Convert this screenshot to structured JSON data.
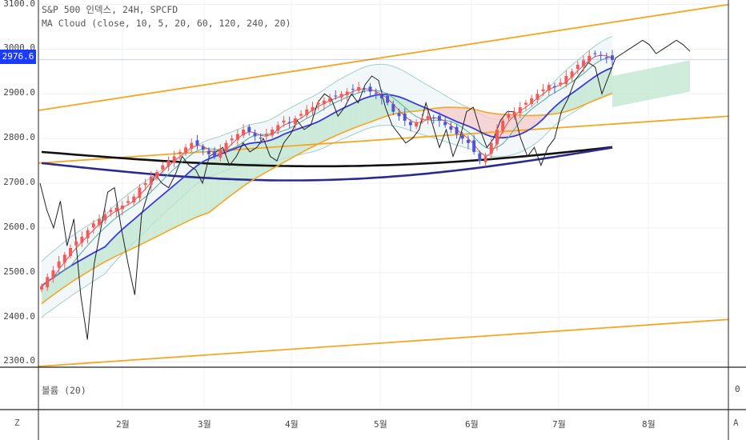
{
  "legend": {
    "line1": "S&P 500 인덱스, 24H, SPCFD",
    "line2": "MA Cloud (close, 10, 5, 20, 60, 120, 240, 20)"
  },
  "price_badge": "2976.6",
  "subpane_label": "볼륨 (20)",
  "subpane_tick": "0",
  "corner_left": "Z",
  "corner_right": "A",
  "colors": {
    "bull": "#f25a5a",
    "bear": "#4a55d8",
    "orange": "#f5a623",
    "navy": "#2b2b8f",
    "black": "#111111"
  },
  "chart_data": {
    "type": "candlestick",
    "title": "S&P 500 인덱스, 24H, SPCFD",
    "y_ticks": [
      "3100.0",
      "3000.0",
      "2900.0",
      "2800.0",
      "2700.0",
      "2600.0",
      "2500.0",
      "2400.0",
      "2300.0"
    ],
    "x_ticks": [
      "2월",
      "3월",
      "4월",
      "5월",
      "6월",
      "7월",
      "8월"
    ],
    "ylim": [
      2290,
      3110
    ],
    "current_price": 2976.6,
    "close_series": [
      2470,
      2490,
      2505,
      2525,
      2540,
      2555,
      2570,
      2580,
      2595,
      2610,
      2620,
      2630,
      2640,
      2645,
      2650,
      2660,
      2670,
      2690,
      2700,
      2715,
      2725,
      2740,
      2750,
      2760,
      2770,
      2780,
      2790,
      2785,
      2775,
      2765,
      2760,
      2775,
      2790,
      2800,
      2810,
      2820,
      2815,
      2805,
      2800,
      2810,
      2820,
      2830,
      2840,
      2835,
      2845,
      2855,
      2865,
      2870,
      2880,
      2885,
      2890,
      2895,
      2900,
      2905,
      2910,
      2915,
      2910,
      2905,
      2900,
      2890,
      2880,
      2860,
      2850,
      2840,
      2830,
      2835,
      2845,
      2850,
      2845,
      2840,
      2830,
      2820,
      2810,
      2800,
      2790,
      2770,
      2750,
      2760,
      2790,
      2820,
      2840,
      2855,
      2860,
      2870,
      2880,
      2890,
      2900,
      2910,
      2920,
      2915,
      2925,
      2940,
      2950,
      2965,
      2975,
      2985,
      2990,
      2985,
      2980,
      2976
    ],
    "oscillator_series": [
      2700,
      2640,
      2600,
      2660,
      2560,
      2620,
      2450,
      2350,
      2520,
      2600,
      2680,
      2690,
      2600,
      2520,
      2450,
      2630,
      2680,
      2720,
      2700,
      2690,
      2720,
      2760,
      2740,
      2730,
      2700,
      2760,
      2770,
      2780,
      2740,
      2760,
      2790,
      2770,
      2780,
      2800,
      2760,
      2750,
      2790,
      2810,
      2840,
      2820,
      2830,
      2880,
      2900,
      2890,
      2850,
      2870,
      2900,
      2880,
      2920,
      2940,
      2930,
      2870,
      2830,
      2810,
      2790,
      2800,
      2820,
      2880,
      2830,
      2780,
      2820,
      2760,
      2800,
      2860,
      2870,
      2820,
      2780,
      2800,
      2840,
      2860,
      2860,
      2800,
      2760,
      2780,
      2740,
      2780,
      2800,
      2860,
      2890,
      2930,
      2950,
      2970,
      2960,
      2900,
      2940,
      2980,
      2990,
      3000,
      3010,
      3020,
      3010,
      2990,
      3000,
      3010,
      3020,
      3010,
      2995
    ],
    "channel_lines": [
      {
        "x0": 0,
        "y0": 2863,
        "x1": 1,
        "y1": 3100
      },
      {
        "x0": 0,
        "y0": 2745,
        "x1": 1,
        "y1": 2850
      },
      {
        "x0": 0,
        "y0": 2290,
        "x1": 1,
        "y1": 2395
      }
    ]
  }
}
